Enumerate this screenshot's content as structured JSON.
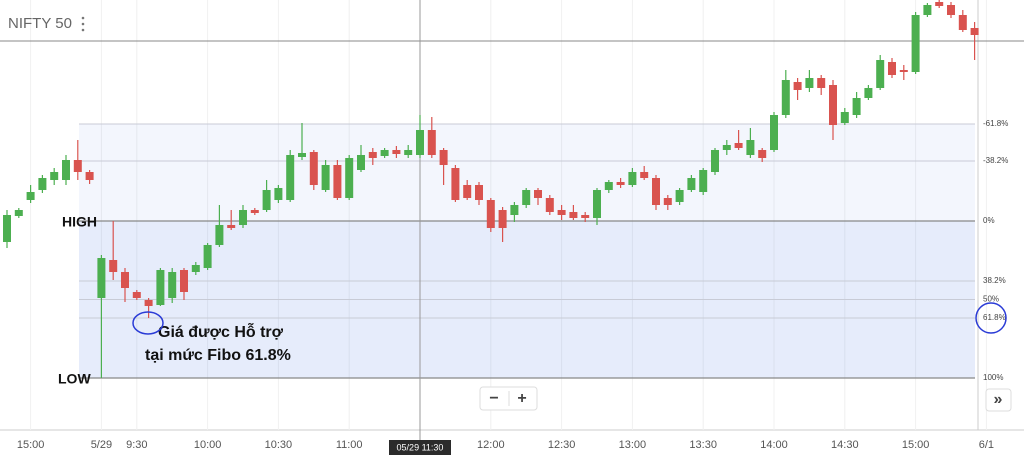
{
  "chart_data": {
    "type": "candlestick",
    "title": "NIFTY 50",
    "categories": [
      null,
      null,
      "15:00",
      null,
      null,
      null,
      null,
      null,
      "5/29",
      null,
      null,
      "9:30",
      null,
      null,
      null,
      null,
      null,
      "10:00",
      null,
      null,
      null,
      null,
      null,
      "10:30",
      null,
      null,
      null,
      null,
      null,
      "11:00",
      null,
      null,
      null,
      null,
      null,
      "11:30",
      null,
      null,
      null,
      null,
      null,
      "12:00",
      null,
      null,
      null,
      null,
      null,
      "12:30",
      null,
      null,
      null,
      null,
      null,
      "13:00",
      null,
      null,
      null,
      null,
      null,
      "13:30",
      null,
      null,
      null,
      null,
      null,
      "14:00",
      null,
      null,
      null,
      null,
      null,
      "14:30",
      null,
      null,
      null,
      null,
      null,
      "15:00",
      null,
      null,
      null,
      null,
      null,
      "6/1"
    ],
    "open": [
      10614,
      10627,
      10635,
      10640,
      10645,
      10645,
      10655,
      10649,
      10586,
      10605,
      10599,
      10589,
      10585,
      10582.5,
      10586,
      10600,
      10599,
      10601,
      10612.5,
      10622.5,
      10622.5,
      10630,
      10630,
      10635,
      10635,
      10656.5,
      10659,
      10640,
      10652.5,
      10636,
      10650,
      10659,
      10657,
      10660,
      10657.5,
      10657.5,
      10670,
      10660,
      10651,
      10642.5,
      10642.5,
      10635,
      10630,
      10627.5,
      10632.5,
      10640,
      10636,
      10630,
      10629,
      10627.5,
      10626,
      10640,
      10644,
      10642.5,
      10649,
      10646,
      10636,
      10634,
      10640,
      10639,
      10649,
      10660,
      10663.5,
      10657.5,
      10660,
      10660,
      10677.5,
      10694,
      10691,
      10696,
      10692.5,
      10673.5,
      10677.5,
      10686,
      10691,
      10704,
      10700,
      10699,
      10727.5,
      10734,
      10732.5,
      10727.5,
      10721,
      null
    ],
    "high": [
      10630,
      10631,
      10642.5,
      10647.5,
      10651,
      10657.5,
      10665,
      10650,
      10607.5,
      10624.5,
      10601,
      10590,
      10586,
      10601,
      10601,
      10601,
      10604,
      10613.5,
      10632.5,
      10630,
      10632.5,
      10631,
      10645,
      10642.5,
      10660,
      10673.5,
      10660,
      10655,
      10655,
      10657.5,
      10662.5,
      10661,
      10661,
      10662,
      10662.5,
      10677.5,
      10676.5,
      10661,
      10652.5,
      10645,
      10644,
      10636,
      10631.5,
      10634,
      10641,
      10641,
      10637.5,
      10632.5,
      10632.5,
      10629,
      10641,
      10645,
      10646,
      10651,
      10652,
      10647.5,
      10637.5,
      10641,
      10647.5,
      10651,
      10661,
      10665,
      10670,
      10671,
      10661,
      10679,
      10700,
      10696,
      10700,
      10697.5,
      10695,
      10681,
      10689,
      10692.5,
      10707.5,
      10706,
      10702.5,
      10729,
      10733.5,
      10735,
      10734,
      10730,
      10724,
      null
    ],
    "low": [
      10611,
      10626,
      10633.5,
      10638.5,
      10642.5,
      10642.5,
      10645,
      10643,
      10546,
      10595,
      10584,
      10585,
      10576,
      10582,
      10583.5,
      10585,
      10597.5,
      10600,
      10611.5,
      10620,
      10621,
      10627.5,
      10629,
      10633.5,
      10634,
      10655,
      10640,
      10639,
      10635,
      10635,
      10649,
      10652.5,
      10656,
      10656,
      10656,
      10656,
      10656,
      10642.5,
      10634,
      10635,
      10632.5,
      10619,
      10614,
      10624,
      10631,
      10632.5,
      10627.5,
      10625,
      10625,
      10624,
      10622.5,
      10638.5,
      10641,
      10641.5,
      10645,
      10630,
      10630,
      10632.5,
      10639,
      10637.5,
      10647.5,
      10657.5,
      10660,
      10656,
      10654,
      10659,
      10676,
      10685,
      10689,
      10687.5,
      10665,
      10672.5,
      10676,
      10685,
      10690,
      10696,
      10695,
      10698,
      10726.5,
      10731,
      10726,
      10719,
      10705,
      null
    ],
    "close": [
      10627.5,
      10630,
      10639,
      10646,
      10649,
      10655,
      10649,
      10645,
      10606,
      10599,
      10591,
      10586,
      10582,
      10600,
      10599,
      10589,
      10602.5,
      10612.5,
      10622.5,
      10621,
      10630,
      10628.5,
      10640,
      10641,
      10657.5,
      10658.5,
      10642.5,
      10652.5,
      10636,
      10656,
      10657.5,
      10656,
      10660,
      10658,
      10660,
      10670,
      10657.5,
      10652.5,
      10635,
      10636,
      10635,
      10621,
      10621,
      10632.5,
      10640,
      10636,
      10629,
      10627.5,
      10626,
      10626,
      10640,
      10644,
      10642.5,
      10649,
      10646,
      10632.5,
      10632.5,
      10640,
      10646,
      10650,
      10660,
      10662.5,
      10661,
      10665,
      10656,
      10677.5,
      10695,
      10690,
      10696,
      10691,
      10672.5,
      10679,
      10686,
      10691,
      10705,
      10697.5,
      10699,
      10727.5,
      10732.5,
      10732,
      10727.5,
      10720,
      10717.5,
      null
    ],
    "up_color": "#4caf50",
    "down_color": "#d9534f",
    "ylim": [
      10520,
      10735
    ],
    "fibonacci": {
      "high": 10624.5,
      "low": 10546,
      "levels": [
        {
          "value": -61.8,
          "label": "-61.8%"
        },
        {
          "value": -38.2,
          "label": "-38.2%"
        },
        {
          "value": 0,
          "label": "0%"
        },
        {
          "value": 38.2,
          "label": "38.2%"
        },
        {
          "value": 50,
          "label": "50%"
        },
        {
          "value": 61.8,
          "label": "61.8%"
        },
        {
          "value": 100,
          "label": "100%"
        }
      ]
    },
    "annotations": {
      "high": "HIGH",
      "low": "LOW",
      "note_line1": "Giá được Hỗ trợ",
      "note_line2": "tại mức Fibo 61.8%"
    },
    "crosshair": {
      "label": "05/29 11:30",
      "price": 10714.5
    },
    "controls": {
      "zoom_out": "−",
      "zoom_in": "+",
      "scroll": "»"
    }
  }
}
